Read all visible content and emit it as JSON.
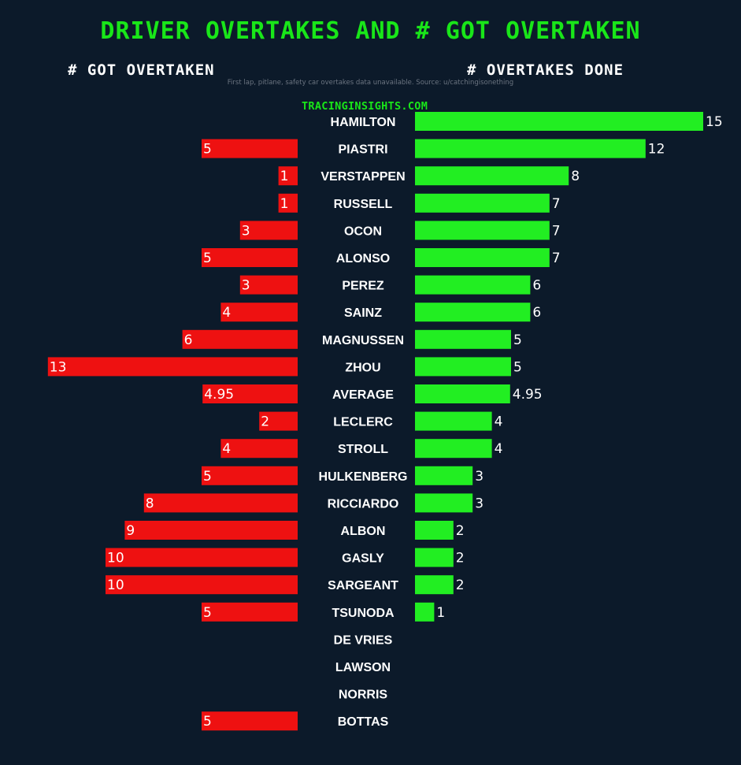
{
  "title": "DRIVER OVERTAKES AND # GOT OVERTAKEN",
  "left_header": "# GOT OVERTAKEN",
  "right_header": "# OVERTAKES DONE",
  "note": "First lap, pitlane, safety car overtakes data unavailable. Source: u/catchingisonething",
  "brand": "TRACINGINSIGHTS.COM",
  "colors": {
    "background": "#0c1a2a",
    "overtakes_done": "#22ee22",
    "got_overtaken": "#ee1111",
    "title": "#19e619"
  },
  "chart_data": {
    "type": "bar",
    "orientation": "horizontal-diverging",
    "categories": [
      "HAMILTON",
      "PIASTRI",
      "VERSTAPPEN",
      "RUSSELL",
      "OCON",
      "ALONSO",
      "PEREZ",
      "SAINZ",
      "MAGNUSSEN",
      "ZHOU",
      "AVERAGE",
      "LECLERC",
      "STROLL",
      "HULKENBERG",
      "RICCIARDO",
      "ALBON",
      "GASLY",
      "SARGEANT",
      "TSUNODA",
      "DE VRIES",
      "LAWSON",
      "NORRIS",
      "BOTTAS"
    ],
    "series": [
      {
        "name": "# OVERTAKES DONE",
        "values": [
          15,
          12,
          8,
          7,
          7,
          7,
          6,
          6,
          5,
          5,
          4.95,
          4,
          4,
          3,
          3,
          2,
          2,
          2,
          1,
          0,
          0,
          0,
          0
        ]
      },
      {
        "name": "# GOT OVERTAKEN",
        "values": [
          0,
          5,
          1,
          1,
          3,
          5,
          3,
          4,
          6,
          13,
          4.95,
          2,
          4,
          5,
          8,
          9,
          10,
          10,
          5,
          0,
          0,
          0,
          5
        ]
      }
    ]
  }
}
